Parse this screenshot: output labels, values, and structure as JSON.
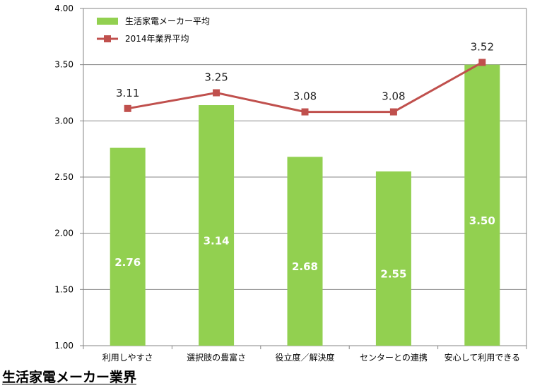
{
  "caption": "生活家電メーカー業界",
  "chart_data": {
    "type": "bar",
    "categories": [
      "利用しやすさ",
      "選択肢の豊富さ",
      "役立度／解決度",
      "センターとの連携",
      "安心して利用できる"
    ],
    "series": [
      {
        "name": "生活家電メーカー平均",
        "type": "bar",
        "values": [
          2.76,
          3.14,
          2.68,
          2.55,
          3.5
        ],
        "labels": [
          "2.76",
          "3.14",
          "2.68",
          "2.55",
          "3.50"
        ],
        "color": "#92d050"
      },
      {
        "name": "2014年業界平均",
        "type": "line",
        "values": [
          3.11,
          3.25,
          3.08,
          3.08,
          3.52
        ],
        "labels": [
          "3.11",
          "3.25",
          "3.08",
          "3.08",
          "3.52"
        ],
        "color": "#c0504d"
      }
    ],
    "ylim": [
      1.0,
      4.0
    ],
    "yticks": [
      "1.00",
      "1.50",
      "2.00",
      "2.50",
      "3.00",
      "3.50",
      "4.00"
    ],
    "grid": true,
    "legend_position": "top-left"
  }
}
